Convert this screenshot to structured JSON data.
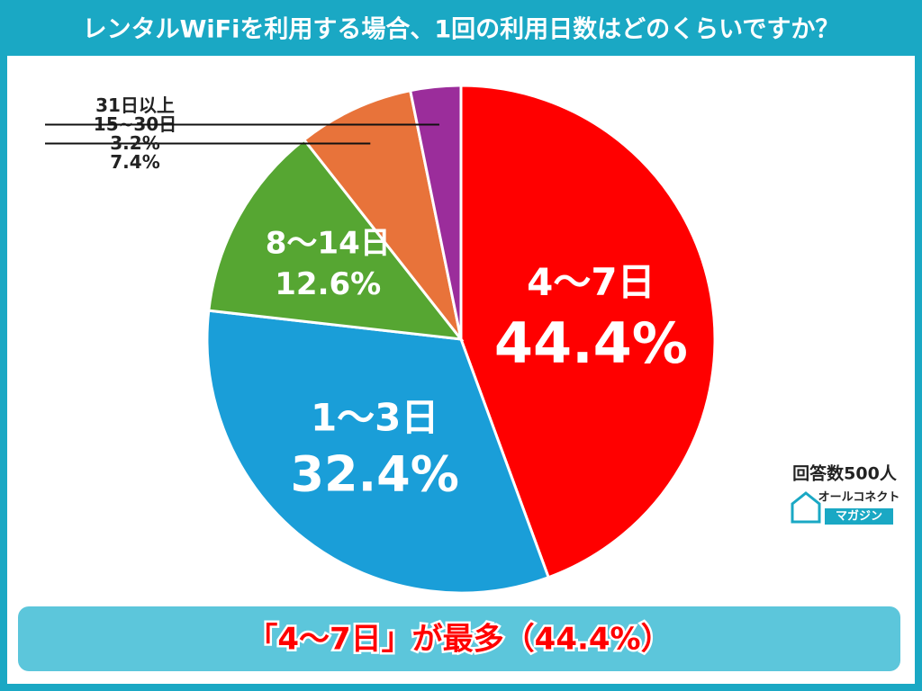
{
  "chart_data": {
    "type": "pie",
    "title": "レンタルWiFiを利用する場合、1回の利用日数はどのくらいですか？",
    "categories": [
      "4～7日",
      "1～3日",
      "8～14日",
      "15~30日",
      "31日以上"
    ],
    "values": [
      44.4,
      32.4,
      12.6,
      7.4,
      3.2
    ],
    "value_labels": [
      "44.4%",
      "32.4%",
      "12.6%",
      "7.4%",
      "3.2%"
    ],
    "colors": [
      "#ff0000",
      "#1a9ed8",
      "#56a632",
      "#e8733a",
      "#9b2d9b"
    ],
    "note": "回答数500人",
    "brand": "オールコネクト",
    "brand_sub": "マガジン",
    "footer": "「4～7日」が最多（44.4%）"
  }
}
